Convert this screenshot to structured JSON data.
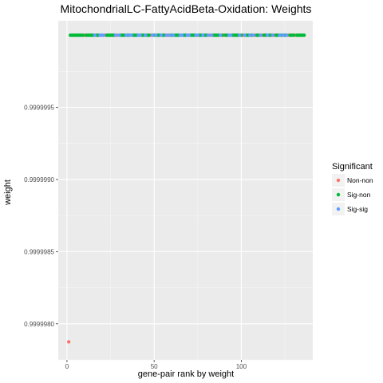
{
  "chart_data": {
    "type": "scatter",
    "title": "MitochondrialLC-FattyAcidBeta-Oxidation: Weights",
    "xlabel": "gene-pair rank by weight",
    "ylabel": "weight",
    "xlim": [
      -5,
      141
    ],
    "ylim": [
      0.99999775,
      1.0000001
    ],
    "x_ticks": [
      0,
      50,
      100
    ],
    "y_ticks": [
      0.999998,
      0.9999985,
      0.999999,
      0.9999995
    ],
    "y_tick_labels": [
      "0.9999980",
      "0.9999985",
      "0.9999990",
      "0.9999995"
    ],
    "grid": true,
    "legend": {
      "title": "Significant",
      "position": "right",
      "entries": [
        {
          "name": "Non-non",
          "color": "#F8766D"
        },
        {
          "name": "Sig-non",
          "color": "#00BA38"
        },
        {
          "name": "Sig-sig",
          "color": "#619CFF"
        }
      ]
    },
    "series": [
      {
        "name": "Non-non",
        "x": [
          1,
          10,
          22,
          29,
          48,
          58,
          82,
          90,
          101,
          108,
          112,
          119,
          127,
          131
        ],
        "y_constant_above_1": 0.9999978745,
        "y": [
          0.9999978745,
          1.0,
          1.0,
          1.0,
          1.0,
          1.0,
          1.0,
          1.0,
          1.0,
          1.0,
          1.0,
          1.0,
          1.0,
          1.0
        ]
      },
      {
        "name": "Sig-non",
        "x": [
          2,
          3,
          4,
          5,
          6,
          7,
          8,
          9,
          11,
          12,
          13,
          14,
          15,
          17,
          18,
          23,
          24,
          25,
          26,
          27,
          31,
          32,
          33,
          35,
          38,
          39,
          40,
          43,
          44,
          46,
          47,
          50,
          52,
          53,
          55,
          56,
          60,
          62,
          63,
          64,
          67,
          68,
          71,
          72,
          73,
          76,
          77,
          79,
          80,
          84,
          85,
          86,
          87,
          89,
          91,
          92,
          95,
          96,
          97,
          98,
          100,
          103,
          104,
          106,
          109,
          110,
          113,
          114,
          116,
          117,
          120,
          121,
          123,
          125,
          128,
          129,
          130,
          132,
          133,
          134,
          135,
          136
        ],
        "y_value": 1.0
      },
      {
        "name": "Sig-sig",
        "x": [
          16,
          19,
          20,
          21,
          28,
          30,
          34,
          36,
          37,
          41,
          42,
          45,
          49,
          51,
          54,
          57,
          59,
          61,
          65,
          66,
          69,
          70,
          74,
          75,
          78,
          81,
          83,
          88,
          93,
          94,
          99,
          102,
          105,
          107,
          111,
          115,
          118,
          122,
          124,
          126
        ],
        "y_value": 1.0
      }
    ]
  }
}
